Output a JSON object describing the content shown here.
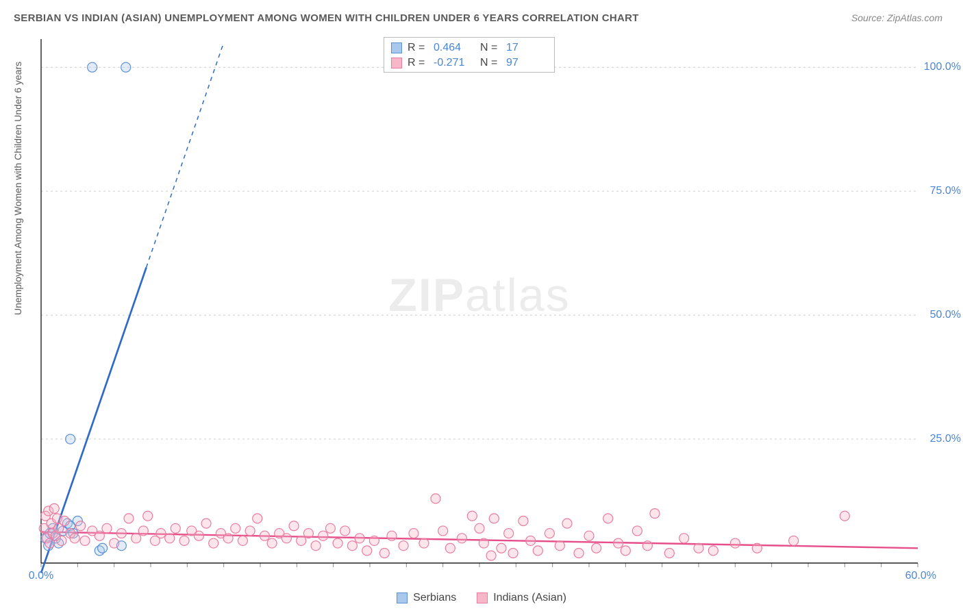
{
  "title": "SERBIAN VS INDIAN (ASIAN) UNEMPLOYMENT AMONG WOMEN WITH CHILDREN UNDER 6 YEARS CORRELATION CHART",
  "source": "Source: ZipAtlas.com",
  "ylabel": "Unemployment Among Women with Children Under 6 years",
  "watermark_bold": "ZIP",
  "watermark_light": "atlas",
  "chart": {
    "type": "scatter",
    "xlim": [
      0,
      60
    ],
    "ylim": [
      0,
      105
    ],
    "xticks_major": [
      0,
      60
    ],
    "xticks_minor_step": 2.5,
    "yticks": [
      25,
      50,
      75,
      100
    ],
    "ytick_labels": [
      "25.0%",
      "50.0%",
      "75.0%",
      "100.0%"
    ],
    "xtick_labels": {
      "0": "0.0%",
      "60": "60.0%"
    },
    "background_color": "#ffffff",
    "grid_color": "#cccccc",
    "axis_color": "#222222",
    "label_color": "#4a86d8",
    "label_fontsize": 16,
    "title_fontsize": 15,
    "marker_radius": 7,
    "series": [
      {
        "name": "Serbians",
        "fill": "#a8c8ec",
        "stroke": "#5b8fd6",
        "r_value": "0.464",
        "n_value": "17",
        "trend": {
          "x1": 0,
          "y1": -2,
          "x2": 12.5,
          "y2": 105,
          "color": "#2f6bc5",
          "width": 2.7,
          "solid_until_x": 7.2
        },
        "points": [
          [
            0.3,
            5.0
          ],
          [
            0.5,
            3.5
          ],
          [
            0.6,
            6.0
          ],
          [
            0.8,
            7.0
          ],
          [
            1.0,
            5.0
          ],
          [
            1.2,
            4.0
          ],
          [
            1.5,
            6.5
          ],
          [
            1.8,
            8.0
          ],
          [
            2.0,
            7.5
          ],
          [
            2.2,
            6.0
          ],
          [
            2.5,
            8.5
          ],
          [
            2.0,
            25.0
          ],
          [
            4.0,
            2.5
          ],
          [
            4.2,
            3.0
          ],
          [
            5.5,
            3.5
          ],
          [
            3.5,
            100.0
          ],
          [
            5.8,
            100.0
          ]
        ]
      },
      {
        "name": "Indians (Asian)",
        "fill": "#f6b8c8",
        "stroke": "#e87ca0",
        "r_value": "-0.271",
        "n_value": "97",
        "trend": {
          "x1": 0,
          "y1": 6.3,
          "x2": 60,
          "y2": 3.0,
          "color": "#e64f8a",
          "width": 2.4
        },
        "points": [
          [
            0.2,
            7.0
          ],
          [
            0.3,
            9.5
          ],
          [
            0.4,
            5.0
          ],
          [
            0.5,
            10.5
          ],
          [
            0.6,
            4.0
          ],
          [
            0.7,
            8.0
          ],
          [
            0.8,
            6.0
          ],
          [
            0.9,
            11.0
          ],
          [
            1.0,
            5.5
          ],
          [
            1.1,
            9.0
          ],
          [
            1.2,
            7.0
          ],
          [
            1.4,
            4.5
          ],
          [
            1.6,
            8.5
          ],
          [
            2.0,
            6.0
          ],
          [
            2.3,
            5.0
          ],
          [
            2.7,
            7.5
          ],
          [
            3.0,
            4.5
          ],
          [
            3.5,
            6.5
          ],
          [
            4.0,
            5.5
          ],
          [
            4.5,
            7.0
          ],
          [
            5.0,
            4.0
          ],
          [
            5.5,
            6.0
          ],
          [
            6.0,
            9.0
          ],
          [
            6.5,
            5.0
          ],
          [
            7.0,
            6.5
          ],
          [
            7.3,
            9.5
          ],
          [
            7.8,
            4.5
          ],
          [
            8.2,
            6.0
          ],
          [
            8.8,
            5.0
          ],
          [
            9.2,
            7.0
          ],
          [
            9.8,
            4.5
          ],
          [
            10.3,
            6.5
          ],
          [
            10.8,
            5.5
          ],
          [
            11.3,
            8.0
          ],
          [
            11.8,
            4.0
          ],
          [
            12.3,
            6.0
          ],
          [
            12.8,
            5.0
          ],
          [
            13.3,
            7.0
          ],
          [
            13.8,
            4.5
          ],
          [
            14.3,
            6.5
          ],
          [
            14.8,
            9.0
          ],
          [
            15.3,
            5.5
          ],
          [
            15.8,
            4.0
          ],
          [
            16.3,
            6.0
          ],
          [
            16.8,
            5.0
          ],
          [
            17.3,
            7.5
          ],
          [
            17.8,
            4.5
          ],
          [
            18.3,
            6.0
          ],
          [
            18.8,
            3.5
          ],
          [
            19.3,
            5.5
          ],
          [
            19.8,
            7.0
          ],
          [
            20.3,
            4.0
          ],
          [
            20.8,
            6.5
          ],
          [
            21.3,
            3.5
          ],
          [
            21.8,
            5.0
          ],
          [
            22.3,
            2.5
          ],
          [
            22.8,
            4.5
          ],
          [
            23.5,
            2.0
          ],
          [
            24.0,
            5.5
          ],
          [
            24.8,
            3.5
          ],
          [
            25.5,
            6.0
          ],
          [
            26.2,
            4.0
          ],
          [
            27.0,
            13.0
          ],
          [
            27.5,
            6.5
          ],
          [
            28.0,
            3.0
          ],
          [
            28.8,
            5.0
          ],
          [
            29.5,
            9.5
          ],
          [
            30.0,
            7.0
          ],
          [
            30.3,
            4.0
          ],
          [
            30.8,
            1.5
          ],
          [
            31.0,
            9.0
          ],
          [
            31.5,
            3.0
          ],
          [
            32.0,
            6.0
          ],
          [
            32.3,
            2.0
          ],
          [
            33.0,
            8.5
          ],
          [
            33.5,
            4.5
          ],
          [
            34.0,
            2.5
          ],
          [
            34.8,
            6.0
          ],
          [
            35.5,
            3.5
          ],
          [
            36.0,
            8.0
          ],
          [
            36.8,
            2.0
          ],
          [
            37.5,
            5.5
          ],
          [
            38.0,
            3.0
          ],
          [
            38.8,
            9.0
          ],
          [
            39.5,
            4.0
          ],
          [
            40.0,
            2.5
          ],
          [
            40.8,
            6.5
          ],
          [
            41.5,
            3.5
          ],
          [
            42.0,
            10.0
          ],
          [
            43.0,
            2.0
          ],
          [
            44.0,
            5.0
          ],
          [
            45.0,
            3.0
          ],
          [
            46.0,
            2.5
          ],
          [
            47.5,
            4.0
          ],
          [
            49.0,
            3.0
          ],
          [
            51.5,
            4.5
          ],
          [
            55.0,
            9.5
          ]
        ]
      }
    ]
  },
  "stats_box": {
    "r_label": "R  =",
    "n_label": "N  =",
    "value_color": "#4a86d8"
  },
  "legend": {
    "series1_label": "Serbians",
    "series2_label": "Indians (Asian)"
  }
}
